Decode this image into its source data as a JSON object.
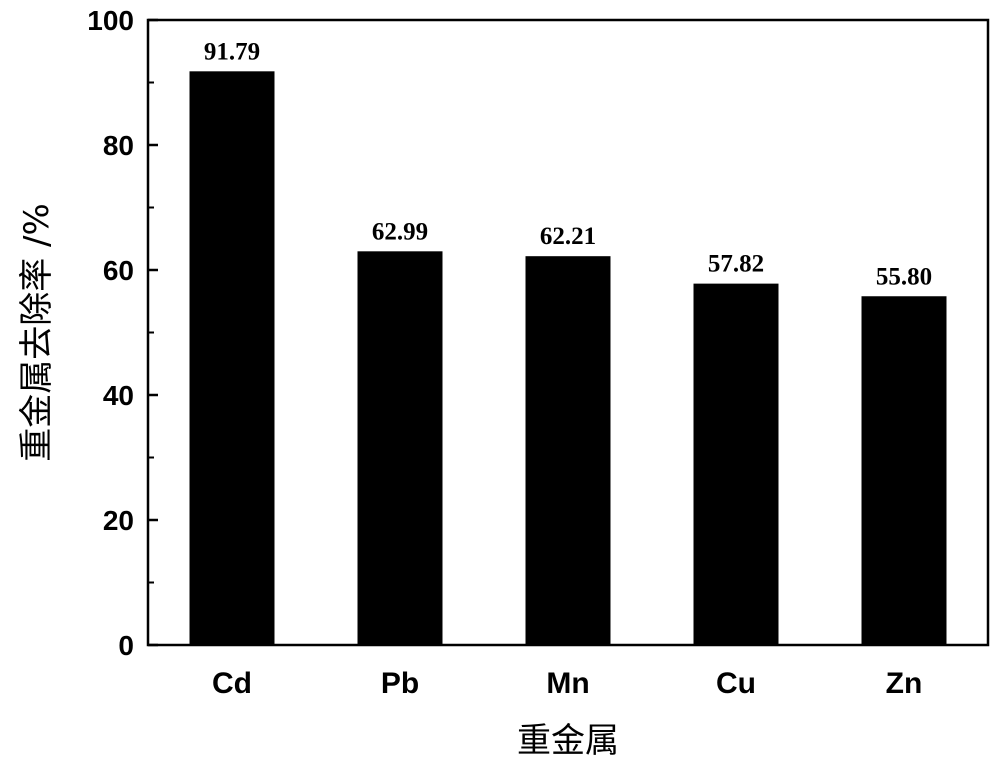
{
  "chart_data": {
    "type": "bar",
    "categories": [
      "Cd",
      "Pb",
      "Mn",
      "Cu",
      "Zn"
    ],
    "values": [
      91.79,
      62.99,
      62.21,
      57.82,
      55.8
    ],
    "data_labels": [
      "91.79",
      "62.99",
      "62.21",
      "57.82",
      "55.80"
    ],
    "xlabel": "重金属",
    "ylabel": "重金属去除率 /%",
    "ylim": [
      0,
      100
    ],
    "yticks": [
      0,
      20,
      40,
      60,
      80,
      100
    ],
    "ytick_labels": [
      "0",
      "20",
      "40",
      "60",
      "80",
      "100"
    ],
    "grid": false,
    "bar_color": "#000000"
  }
}
